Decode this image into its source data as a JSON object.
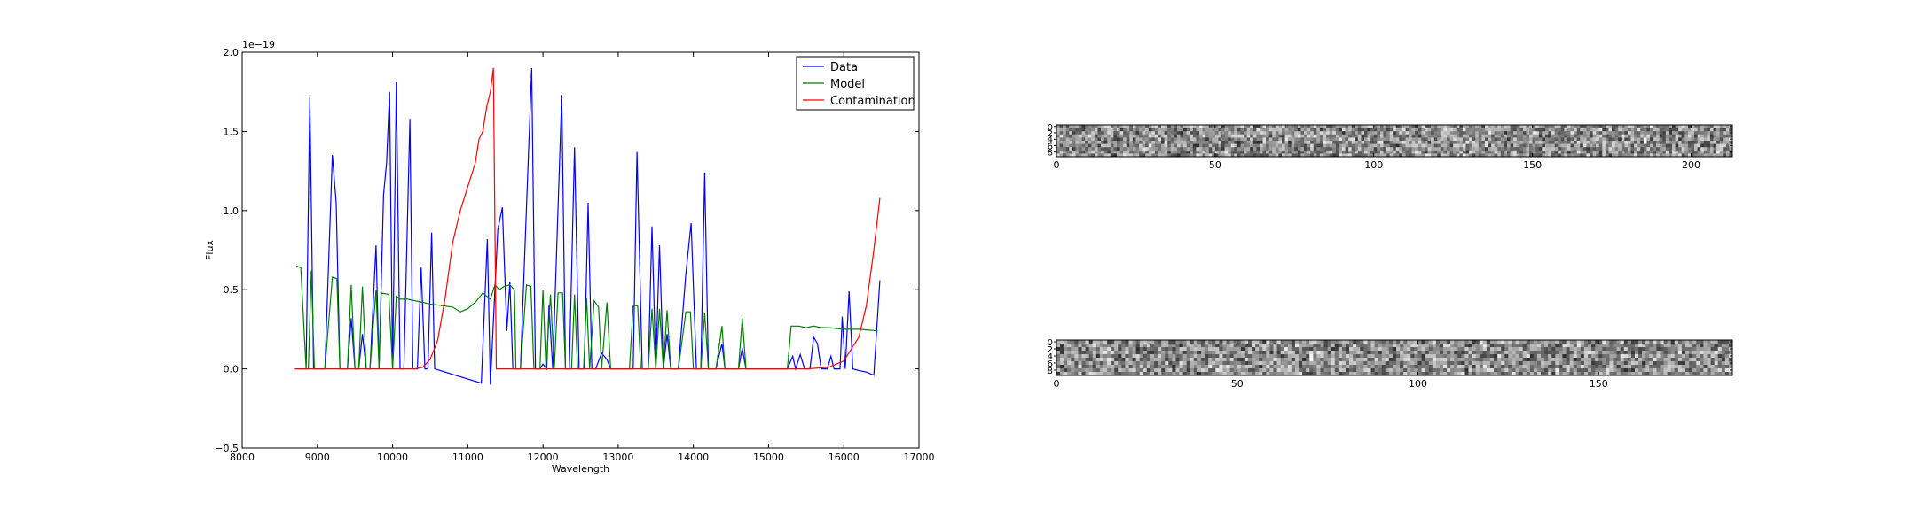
{
  "chart_data": [
    {
      "type": "line",
      "xlabel": "Wavelength",
      "ylabel": "Flux",
      "offset_text": "1e−19",
      "xlim": [
        8000,
        17000
      ],
      "ylim": [
        -0.5,
        2.0
      ],
      "xticks": [
        8000,
        9000,
        10000,
        11000,
        12000,
        13000,
        14000,
        15000,
        16000,
        17000
      ],
      "yticks": [
        -0.5,
        0.0,
        0.5,
        1.0,
        1.5,
        2.0
      ],
      "legend_position": "top-right",
      "series": [
        {
          "name": "Data",
          "color": "#0000ff",
          "points": [
            [
              8750,
              0
            ],
            [
              8850,
              0
            ],
            [
              8900,
              1.72
            ],
            [
              8950,
              0
            ],
            [
              9050,
              0
            ],
            [
              9100,
              0
            ],
            [
              9200,
              1.35
            ],
            [
              9250,
              1.05
            ],
            [
              9300,
              0
            ],
            [
              9400,
              0
            ],
            [
              9450,
              0.32
            ],
            [
              9500,
              0
            ],
            [
              9550,
              0
            ],
            [
              9600,
              0.22
            ],
            [
              9650,
              0
            ],
            [
              9700,
              0
            ],
            [
              9780,
              0.78
            ],
            [
              9820,
              0
            ],
            [
              9880,
              1.1
            ],
            [
              9920,
              1.3
            ],
            [
              9960,
              1.75
            ],
            [
              10000,
              0
            ],
            [
              10050,
              1.81
            ],
            [
              10100,
              0
            ],
            [
              10150,
              0
            ],
            [
              10230,
              1.58
            ],
            [
              10270,
              0
            ],
            [
              10330,
              0
            ],
            [
              10380,
              0.64
            ],
            [
              10430,
              0
            ],
            [
              10470,
              0
            ],
            [
              10520,
              0.86
            ],
            [
              10560,
              0
            ],
            [
              11180,
              -0.09
            ],
            [
              11260,
              0.82
            ],
            [
              11300,
              -0.1
            ],
            [
              11400,
              0.88
            ],
            [
              11460,
              1.02
            ],
            [
              11520,
              0.24
            ],
            [
              11560,
              0.55
            ],
            [
              11600,
              0
            ],
            [
              11700,
              0
            ],
            [
              11850,
              1.9
            ],
            [
              11900,
              0
            ],
            [
              11960,
              0
            ],
            [
              12000,
              0.03
            ],
            [
              12050,
              0
            ],
            [
              12080,
              0.4
            ],
            [
              12130,
              0
            ],
            [
              12250,
              1.73
            ],
            [
              12300,
              0
            ],
            [
              12350,
              0
            ],
            [
              12420,
              1.4
            ],
            [
              12480,
              0
            ],
            [
              12550,
              0
            ],
            [
              12600,
              1.05
            ],
            [
              12650,
              0
            ],
            [
              12700,
              0
            ],
            [
              12780,
              0.1
            ],
            [
              12850,
              0.06
            ],
            [
              12900,
              0
            ],
            [
              12950,
              0
            ],
            [
              13000,
              0
            ],
            [
              13200,
              0
            ],
            [
              13250,
              1.37
            ],
            [
              13320,
              0
            ],
            [
              13400,
              0
            ],
            [
              13450,
              0.9
            ],
            [
              13500,
              0
            ],
            [
              13550,
              0.78
            ],
            [
              13600,
              0
            ],
            [
              13650,
              0.22
            ],
            [
              13700,
              0
            ],
            [
              13800,
              0
            ],
            [
              13900,
              0.6
            ],
            [
              13970,
              0.92
            ],
            [
              14040,
              0
            ],
            [
              14100,
              0
            ],
            [
              14150,
              1.24
            ],
            [
              14200,
              0
            ],
            [
              14300,
              0
            ],
            [
              14380,
              0.16
            ],
            [
              14420,
              0
            ],
            [
              14600,
              0
            ],
            [
              14650,
              0.13
            ],
            [
              14700,
              0
            ],
            [
              15250,
              0
            ],
            [
              15320,
              0.08
            ],
            [
              15360,
              0
            ],
            [
              15420,
              0.09
            ],
            [
              15480,
              0
            ],
            [
              15550,
              0
            ],
            [
              15600,
              0.2
            ],
            [
              15650,
              0.16
            ],
            [
              15700,
              0
            ],
            [
              15780,
              0
            ],
            [
              15830,
              0.08
            ],
            [
              15870,
              0
            ],
            [
              15950,
              0
            ],
            [
              15980,
              0.33
            ],
            [
              16020,
              0
            ],
            [
              16070,
              0.49
            ],
            [
              16120,
              0
            ],
            [
              16200,
              -0.01
            ],
            [
              16300,
              -0.02
            ],
            [
              16400,
              -0.04
            ],
            [
              16480,
              0.56
            ]
          ]
        },
        {
          "name": "Model",
          "color": "#008000",
          "points": [
            [
              8720,
              0.65
            ],
            [
              8780,
              0.64
            ],
            [
              8850,
              0
            ],
            [
              8880,
              0
            ],
            [
              8920,
              0.62
            ],
            [
              8960,
              0
            ],
            [
              9100,
              0
            ],
            [
              9200,
              0.58
            ],
            [
              9260,
              0.57
            ],
            [
              9300,
              0
            ],
            [
              9400,
              0
            ],
            [
              9450,
              0.53
            ],
            [
              9500,
              0
            ],
            [
              9550,
              0
            ],
            [
              9600,
              0.52
            ],
            [
              9650,
              0
            ],
            [
              9700,
              0
            ],
            [
              9780,
              0.5
            ],
            [
              9820,
              0
            ],
            [
              9850,
              0.48
            ],
            [
              9950,
              0.47
            ],
            [
              10000,
              0
            ],
            [
              10050,
              0.46
            ],
            [
              10100,
              0.44
            ],
            [
              10200,
              0.44
            ],
            [
              10500,
              0.41
            ],
            [
              10800,
              0.39
            ],
            [
              10900,
              0.36
            ],
            [
              11000,
              0.38
            ],
            [
              11100,
              0.42
            ],
            [
              11200,
              0.48
            ],
            [
              11300,
              0.44
            ],
            [
              11360,
              0.53
            ],
            [
              11420,
              0.5
            ],
            [
              11480,
              0.52
            ],
            [
              11560,
              0.53
            ],
            [
              11620,
              0.5
            ],
            [
              11640,
              0
            ],
            [
              11700,
              0
            ],
            [
              11780,
              0.53
            ],
            [
              11840,
              0.52
            ],
            [
              11880,
              0
            ],
            [
              11960,
              0
            ],
            [
              12000,
              0.5
            ],
            [
              12040,
              0
            ],
            [
              12100,
              0.47
            ],
            [
              12150,
              0
            ],
            [
              12200,
              0.48
            ],
            [
              12260,
              0.48
            ],
            [
              12300,
              0
            ],
            [
              12380,
              0
            ],
            [
              12420,
              0.47
            ],
            [
              12460,
              0
            ],
            [
              12540,
              0
            ],
            [
              12580,
              0.45
            ],
            [
              12620,
              0
            ],
            [
              12680,
              0.43
            ],
            [
              12740,
              0.39
            ],
            [
              12780,
              0
            ],
            [
              12850,
              0.42
            ],
            [
              12900,
              0
            ],
            [
              13150,
              0
            ],
            [
              13200,
              0.4
            ],
            [
              13260,
              0.4
            ],
            [
              13300,
              0
            ],
            [
              13400,
              0
            ],
            [
              13450,
              0.38
            ],
            [
              13500,
              0
            ],
            [
              13550,
              0.38
            ],
            [
              13600,
              0
            ],
            [
              13650,
              0.37
            ],
            [
              13700,
              0
            ],
            [
              13800,
              0
            ],
            [
              13900,
              0.36
            ],
            [
              13960,
              0.36
            ],
            [
              14000,
              0
            ],
            [
              14100,
              0
            ],
            [
              14150,
              0.35
            ],
            [
              14200,
              0
            ],
            [
              14300,
              0
            ],
            [
              14380,
              0.27
            ],
            [
              14420,
              0
            ],
            [
              14600,
              0
            ],
            [
              14650,
              0.32
            ],
            [
              14700,
              0
            ],
            [
              15250,
              0
            ],
            [
              15300,
              0.27
            ],
            [
              15400,
              0.27
            ],
            [
              15500,
              0.26
            ],
            [
              15600,
              0.27
            ],
            [
              15700,
              0.26
            ],
            [
              15800,
              0.26
            ],
            [
              16000,
              0.25
            ],
            [
              16200,
              0.25
            ],
            [
              16450,
              0.24
            ]
          ]
        },
        {
          "name": "Contamination",
          "color": "#ff0000",
          "points": [
            [
              8700,
              0
            ],
            [
              10300,
              0
            ],
            [
              10400,
              0.01
            ],
            [
              10500,
              0.06
            ],
            [
              10600,
              0.18
            ],
            [
              10700,
              0.45
            ],
            [
              10800,
              0.8
            ],
            [
              10900,
              1.0
            ],
            [
              11000,
              1.15
            ],
            [
              11100,
              1.3
            ],
            [
              11150,
              1.45
            ],
            [
              11200,
              1.5
            ],
            [
              11250,
              1.65
            ],
            [
              11300,
              1.75
            ],
            [
              11340,
              1.9
            ],
            [
              11380,
              0
            ],
            [
              11500,
              0
            ],
            [
              15500,
              0
            ],
            [
              15800,
              0.01
            ],
            [
              16000,
              0.05
            ],
            [
              16200,
              0.2
            ],
            [
              16300,
              0.4
            ],
            [
              16400,
              0.75
            ],
            [
              16480,
              1.08
            ]
          ]
        }
      ]
    },
    {
      "type": "heatmap",
      "colormap": "gray",
      "xlim": [
        0,
        213
      ],
      "xticks": [
        0,
        50,
        100,
        150,
        200
      ],
      "yticks": [
        0,
        2,
        4,
        6,
        8
      ],
      "highlight_col": 185
    },
    {
      "type": "heatmap",
      "colormap": "gray",
      "xlim": [
        0,
        187
      ],
      "xticks": [
        0,
        50,
        100,
        150
      ],
      "yticks": [
        0,
        2,
        4,
        6,
        8
      ],
      "highlight_col": 70
    }
  ]
}
